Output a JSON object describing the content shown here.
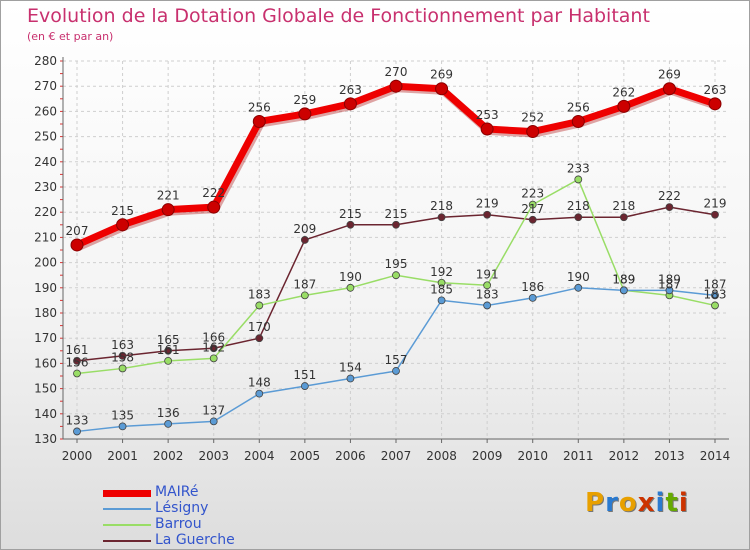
{
  "header": {
    "title": "Evolution de la Dotation Globale de Fonctionnement par Habitant",
    "subtitle": "(en € et par an)"
  },
  "logo": {
    "text": "Proxiti",
    "colors": [
      "#e8a000",
      "#2a7ad0",
      "#e8a000",
      "#cc3300",
      "#2a7ad0",
      "#66aa00",
      "#cc3300"
    ]
  },
  "chart_data": {
    "type": "line",
    "title": "Evolution de la Dotation Globale de Fonctionnement par Habitant",
    "subtitle": "(en € et par an)",
    "x": [
      "2000",
      "2001",
      "2002",
      "2003",
      "2004",
      "2005",
      "2006",
      "2007",
      "2008",
      "2009",
      "2010",
      "2011",
      "2012",
      "2013",
      "2014"
    ],
    "ylim": [
      130,
      280
    ],
    "yticks": [
      130,
      140,
      150,
      160,
      170,
      180,
      190,
      200,
      210,
      220,
      230,
      240,
      250,
      260,
      270,
      280
    ],
    "grid": true,
    "legend_position": "bottom-left",
    "series": [
      {
        "name": "MAIRé",
        "color": "#ee0000",
        "values": [
          207,
          215,
          221,
          222,
          256,
          259,
          263,
          270,
          269,
          253,
          252,
          256,
          262,
          269,
          263
        ]
      },
      {
        "name": "Lésigny",
        "color": "#5b9bd5",
        "values": [
          133,
          135,
          136,
          137,
          148,
          151,
          154,
          157,
          185,
          183,
          186,
          190,
          189,
          189,
          187
        ]
      },
      {
        "name": "Barrou",
        "color": "#99dd66",
        "values": [
          156,
          158,
          161,
          162,
          183,
          187,
          190,
          195,
          192,
          191,
          223,
          233,
          189,
          187,
          183
        ]
      },
      {
        "name": "La Guerche",
        "color": "#6b2530",
        "values": [
          161,
          163,
          165,
          166,
          170,
          209,
          215,
          215,
          218,
          219,
          217,
          218,
          218,
          222,
          219
        ]
      }
    ]
  }
}
